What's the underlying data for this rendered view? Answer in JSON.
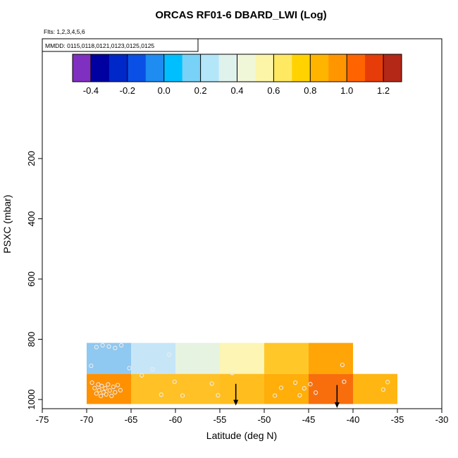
{
  "title": "ORCAS RF01-6 DBARD_LWI (Log)",
  "flights_note": "Flts: 1,2,3,4,5,6",
  "dates_note": "MMDD: 0115,0118,0121,0123,0125,0125",
  "xlabel": "Latitude (deg N)",
  "ylabel": "PSXC (mbar)",
  "chart_data": {
    "type": "heatmap",
    "title": "ORCAS RF01-6 DBARD_LWI (Log)",
    "xlabel": "Latitude (deg N)",
    "ylabel": "PSXC (mbar)",
    "x_range": [
      -75,
      -30
    ],
    "x_ticks": [
      -75,
      -70,
      -65,
      -60,
      -55,
      -50,
      -45,
      -40,
      -35,
      -30
    ],
    "y_ticks": [
      200,
      400,
      600,
      800,
      1000
    ],
    "y_axis": {
      "top_value": 200,
      "bottom_value": 1000,
      "direction": "increasing-downward"
    },
    "colorbar": {
      "range": [
        -0.5,
        1.3
      ],
      "tick_values": [
        -0.4,
        -0.2,
        0.0,
        0.2,
        0.4,
        0.6,
        0.8,
        1.0,
        1.2
      ],
      "tick_labels": [
        "-0.4",
        "-0.2",
        "0.0",
        "0.2",
        "0.4",
        "0.6",
        "0.8",
        "1.0",
        "1.2"
      ],
      "colors": [
        "#8030C0",
        "#0000A0",
        "#0028C8",
        "#0A50E6",
        "#1E8CF0",
        "#00BFFF",
        "#78D2F8",
        "#B4E6FA",
        "#E0F2EC",
        "#F0F7D8",
        "#FCF5A8",
        "#FFE862",
        "#FFD200",
        "#FFB400",
        "#FF9600",
        "#FF6400",
        "#E63C0A",
        "#B42818"
      ]
    },
    "cells": [
      {
        "x0": -70,
        "x1": -65,
        "p0": 812,
        "p1": 915,
        "color": "#8FC8F0"
      },
      {
        "x0": -65,
        "x1": -60,
        "p0": 812,
        "p1": 915,
        "color": "#C6E6F8"
      },
      {
        "x0": -60,
        "x1": -55,
        "p0": 812,
        "p1": 915,
        "color": "#E6F3E0"
      },
      {
        "x0": -55,
        "x1": -50,
        "p0": 812,
        "p1": 915,
        "color": "#FCF5B4"
      },
      {
        "x0": -50,
        "x1": -45,
        "p0": 812,
        "p1": 915,
        "color": "#FFC828"
      },
      {
        "x0": -45,
        "x1": -40,
        "p0": 812,
        "p1": 915,
        "color": "#FFA508"
      },
      {
        "x0": -70,
        "x1": -65,
        "p0": 915,
        "p1": 1015,
        "color": "#FF9000"
      },
      {
        "x0": -65,
        "x1": -60,
        "p0": 915,
        "p1": 1015,
        "color": "#FFC125"
      },
      {
        "x0": -60,
        "x1": -55,
        "p0": 915,
        "p1": 1015,
        "color": "#FFC125"
      },
      {
        "x0": -55,
        "x1": -50,
        "p0": 915,
        "p1": 1015,
        "color": "#FFBE1E"
      },
      {
        "x0": -50,
        "x1": -45,
        "p0": 915,
        "p1": 1015,
        "color": "#FFAE0A"
      },
      {
        "x0": -45,
        "x1": -40,
        "p0": 915,
        "p1": 1015,
        "color": "#F86E0C"
      },
      {
        "x0": -40,
        "x1": -35,
        "p0": 915,
        "p1": 1015,
        "color": "#FFB612"
      }
    ],
    "points": [
      [
        -69.5,
        888
      ],
      [
        -68.9,
        826
      ],
      [
        -68.2,
        820
      ],
      [
        -67.5,
        824
      ],
      [
        -66.8,
        829
      ],
      [
        -66.1,
        820
      ],
      [
        -65.2,
        896
      ],
      [
        -62.6,
        900
      ],
      [
        -60.7,
        851
      ],
      [
        -69.4,
        944
      ],
      [
        -69.1,
        962
      ],
      [
        -68.9,
        980
      ],
      [
        -68.7,
        950
      ],
      [
        -68.6,
        969
      ],
      [
        -68.4,
        988
      ],
      [
        -68.3,
        955
      ],
      [
        -68.1,
        976
      ],
      [
        -67.9,
        963
      ],
      [
        -67.8,
        983
      ],
      [
        -67.6,
        950
      ],
      [
        -67.4,
        970
      ],
      [
        -67.2,
        988
      ],
      [
        -67.0,
        958
      ],
      [
        -66.8,
        976
      ],
      [
        -66.5,
        952
      ],
      [
        -66.2,
        969
      ],
      [
        -63.8,
        920
      ],
      [
        -61.6,
        984
      ],
      [
        -60.1,
        941
      ],
      [
        -59.2,
        987
      ],
      [
        -55.9,
        947
      ],
      [
        -55.2,
        986
      ],
      [
        -53.6,
        912
      ],
      [
        -48.8,
        987
      ],
      [
        -48.1,
        961
      ],
      [
        -46.5,
        944
      ],
      [
        -46.0,
        986
      ],
      [
        -45.5,
        963
      ],
      [
        -44.8,
        949
      ],
      [
        -44.2,
        977
      ],
      [
        -41.2,
        885
      ],
      [
        -41.0,
        941
      ],
      [
        -36.6,
        967
      ],
      [
        -36.1,
        942
      ]
    ],
    "arrows": [
      {
        "x": -53.2,
        "p_tail": 948,
        "p_tip": 1020
      },
      {
        "x": -41.8,
        "p_tail": 952,
        "p_tip": 1028
      }
    ]
  }
}
